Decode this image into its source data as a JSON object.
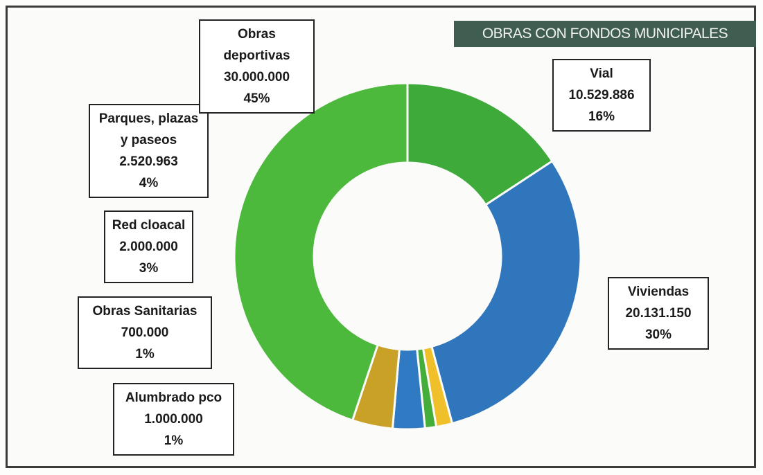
{
  "chart_data": {
    "type": "donut",
    "title": "OBRAS CON FONDOS MUNICIPALES",
    "categories": [
      "Vial",
      "Viviendas",
      "Alumbrado pco",
      "Obras Sanitarias",
      "Red cloacal",
      "Parques, plazas y paseos",
      "Obras deportivas"
    ],
    "values": [
      10529886,
      20131150,
      1000000,
      700000,
      2000000,
      2520963,
      30000000
    ],
    "value_labels": [
      "10.529.886",
      "20.131.150",
      "1.000.000",
      "700.000",
      "2.000.000",
      "2.520.963",
      "30.000.000"
    ],
    "percentages": [
      16,
      30,
      1,
      1,
      3,
      4,
      45
    ],
    "percentage_labels": [
      "16%",
      "30%",
      "1%",
      "1%",
      "3%",
      "4%",
      "45%"
    ],
    "colors": [
      "#3eaa3a",
      "#2f76bd",
      "#f0c02a",
      "#45ad3a",
      "#2f7ac2",
      "#c9a126",
      "#4cb83c"
    ]
  }
}
